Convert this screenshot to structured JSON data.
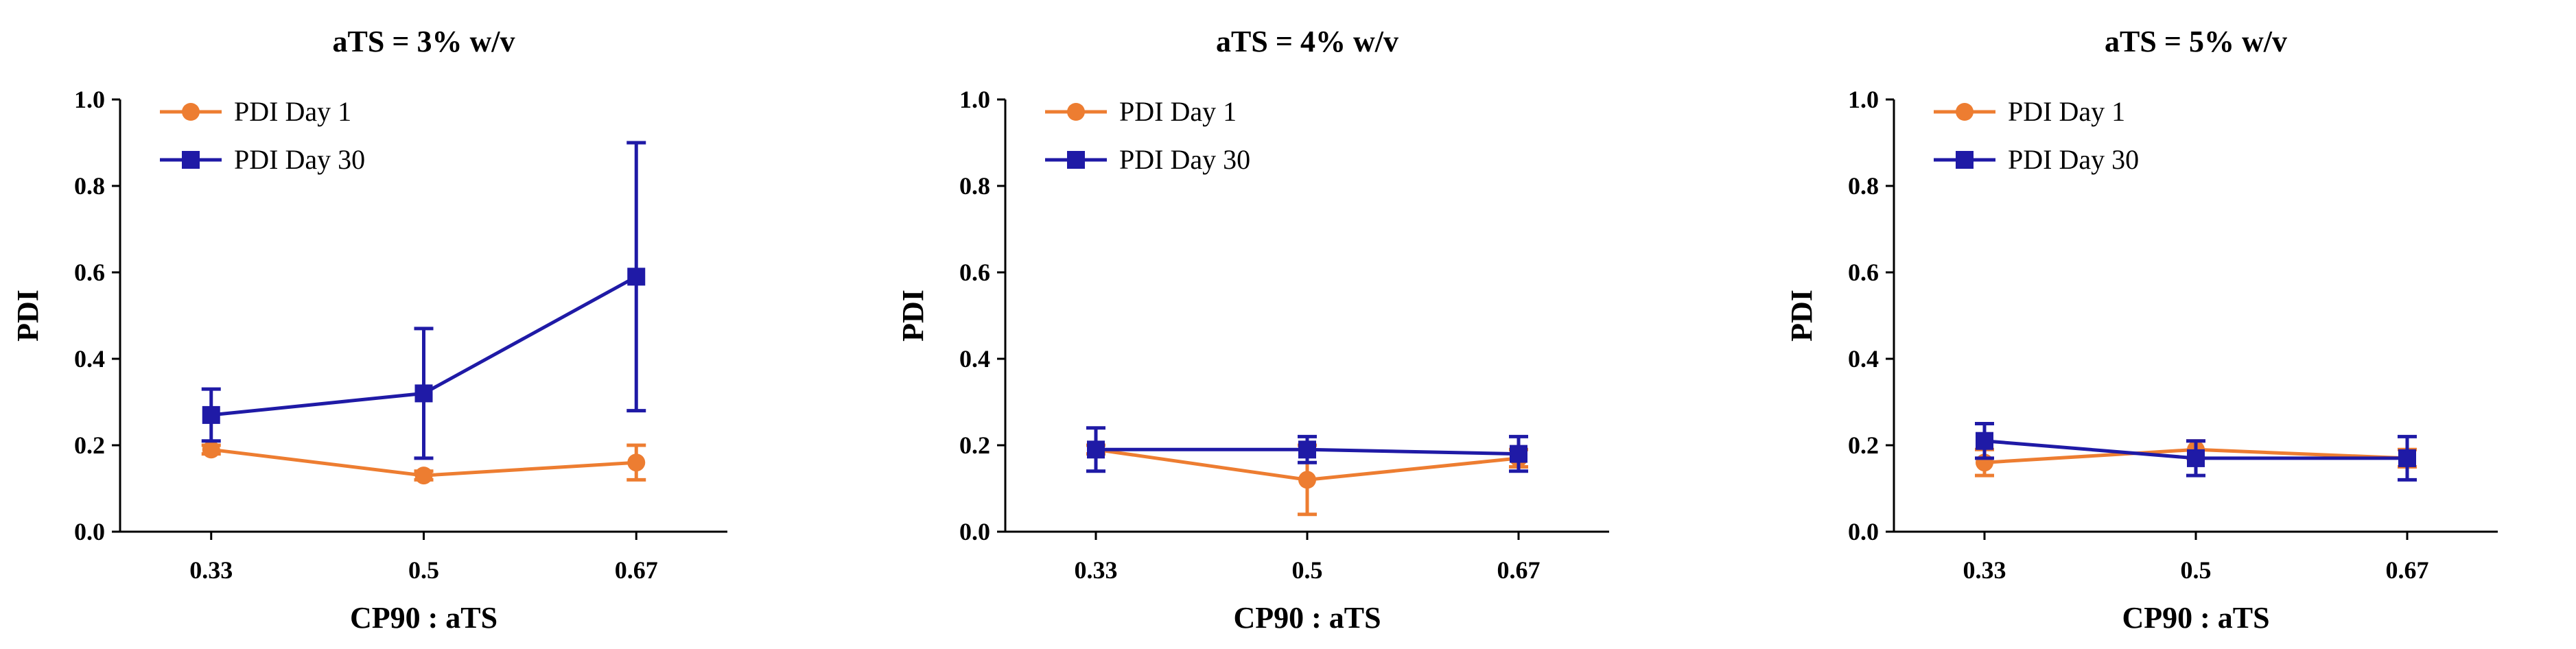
{
  "chart_data": [
    {
      "type": "line",
      "title": "aTS = 3% w/v",
      "xlabel": "CP90 : aTS",
      "ylabel": "PDI",
      "categories": [
        "0.33",
        "0.5",
        "0.67"
      ],
      "ylim": [
        0,
        1.0
      ],
      "yticks": [
        "0.0",
        "0.2",
        "0.4",
        "0.6",
        "0.8",
        "1.0"
      ],
      "legend_position": "top-left",
      "series": [
        {
          "name": "PDI Day 1",
          "color": "#ED7D31",
          "marker": "circle",
          "values": [
            0.19,
            0.13,
            0.16
          ],
          "errors": [
            0.01,
            0.01,
            0.04
          ]
        },
        {
          "name": "PDI Day 30",
          "color": "#1F1AA6",
          "marker": "square",
          "values": [
            0.27,
            0.32,
            0.59
          ],
          "errors": [
            0.06,
            0.15,
            0.31
          ]
        }
      ]
    },
    {
      "type": "line",
      "title": "aTS = 4% w/v",
      "xlabel": "CP90 : aTS",
      "ylabel": "PDI",
      "categories": [
        "0.33",
        "0.5",
        "0.67"
      ],
      "ylim": [
        0,
        1.0
      ],
      "yticks": [
        "0.0",
        "0.2",
        "0.4",
        "0.6",
        "0.8",
        "1.0"
      ],
      "legend_position": "top-left",
      "series": [
        {
          "name": "PDI Day 1",
          "color": "#ED7D31",
          "marker": "circle",
          "values": [
            0.19,
            0.12,
            0.17
          ],
          "errors": [
            0.01,
            0.08,
            0.02
          ]
        },
        {
          "name": "PDI Day 30",
          "color": "#1F1AA6",
          "marker": "square",
          "values": [
            0.19,
            0.19,
            0.18
          ],
          "errors": [
            0.05,
            0.03,
            0.04
          ]
        }
      ]
    },
    {
      "type": "line",
      "title": "aTS = 5% w/v",
      "xlabel": "CP90 : aTS",
      "ylabel": "PDI",
      "categories": [
        "0.33",
        "0.5",
        "0.67"
      ],
      "ylim": [
        0,
        1.0
      ],
      "yticks": [
        "0.0",
        "0.2",
        "0.4",
        "0.6",
        "0.8",
        "1.0"
      ],
      "legend_position": "top-left",
      "series": [
        {
          "name": "PDI Day 1",
          "color": "#ED7D31",
          "marker": "circle",
          "values": [
            0.16,
            0.19,
            0.17
          ],
          "errors": [
            0.03,
            0.02,
            0.02
          ]
        },
        {
          "name": "PDI Day 30",
          "color": "#1F1AA6",
          "marker": "square",
          "values": [
            0.21,
            0.17,
            0.17
          ],
          "errors": [
            0.04,
            0.04,
            0.05
          ]
        }
      ]
    }
  ]
}
